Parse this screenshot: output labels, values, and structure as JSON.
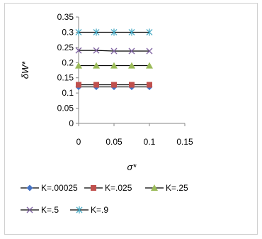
{
  "chart_data": {
    "type": "line",
    "title": "",
    "xlabel": "σ*",
    "ylabel": "δW*",
    "xlim": [
      0,
      0.15
    ],
    "ylim": [
      0,
      0.35
    ],
    "xticks": [
      "0",
      "0.05",
      "0.1",
      "0.15"
    ],
    "yticks": [
      "0",
      "0.05",
      "0.1",
      "0.15",
      "0.2",
      "0.25",
      "0.3",
      "0.35"
    ],
    "x": [
      0,
      0.025,
      0.05,
      0.075,
      0.1
    ],
    "grid": false,
    "legend_position": "bottom",
    "series": [
      {
        "name": "K=.00025",
        "values": [
          0.12,
          0.12,
          0.12,
          0.12,
          0.12
        ],
        "color": "#4472C4",
        "marker": "diamond"
      },
      {
        "name": "K=.025",
        "values": [
          0.127,
          0.127,
          0.127,
          0.127,
          0.127
        ],
        "color": "#C0504D",
        "marker": "square"
      },
      {
        "name": "K=.25",
        "values": [
          0.19,
          0.19,
          0.19,
          0.19,
          0.19
        ],
        "color": "#9BBB59",
        "marker": "triangle"
      },
      {
        "name": "K=.5",
        "values": [
          0.24,
          0.24,
          0.238,
          0.238,
          0.238
        ],
        "color": "#8064A2",
        "marker": "x"
      },
      {
        "name": "K=.9",
        "values": [
          0.3,
          0.3,
          0.3,
          0.3,
          0.3
        ],
        "color": "#4BACC6",
        "marker": "star"
      }
    ]
  }
}
